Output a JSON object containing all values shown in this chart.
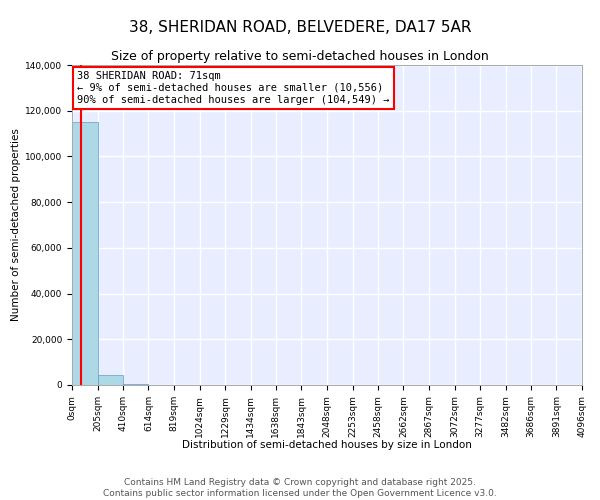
{
  "title": "38, SHERIDAN ROAD, BELVEDERE, DA17 5AR",
  "subtitle": "Size of property relative to semi-detached houses in London",
  "xlabel": "Distribution of semi-detached houses by size in London",
  "ylabel": "Number of semi-detached properties",
  "footer_line1": "Contains HM Land Registry data © Crown copyright and database right 2025.",
  "footer_line2": "Contains public sector information licensed under the Open Government Licence v3.0.",
  "annotation_title": "38 SHERIDAN ROAD: 71sqm",
  "annotation_line1": "← 9% of semi-detached houses are smaller (10,556)",
  "annotation_line2": "90% of semi-detached houses are larger (104,549) →",
  "property_size": 71,
  "bar_left_edges": [
    0,
    205,
    410,
    614,
    819,
    1024,
    1229,
    1434,
    1638,
    1843,
    2048,
    2253,
    2458,
    2662,
    2867,
    3072,
    3277,
    3482,
    3686,
    3891
  ],
  "bar_right_edges": [
    205,
    410,
    614,
    819,
    1024,
    1229,
    1434,
    1638,
    1843,
    2048,
    2253,
    2458,
    2662,
    2867,
    3072,
    3277,
    3482,
    3686,
    3891,
    4096
  ],
  "bar_heights": [
    115000,
    4500,
    500,
    200,
    100,
    80,
    60,
    50,
    40,
    30,
    25,
    20,
    18,
    15,
    12,
    10,
    8,
    7,
    6,
    5
  ],
  "bar_color": "#add8e6",
  "bar_edgecolor": "#6699cc",
  "vline_color": "red",
  "vline_x": 71,
  "xlim": [
    0,
    4096
  ],
  "ylim": [
    0,
    140000
  ],
  "yticks": [
    0,
    20000,
    40000,
    60000,
    80000,
    100000,
    120000,
    140000
  ],
  "xtick_labels": [
    "0sqm",
    "205sqm",
    "410sqm",
    "614sqm",
    "819sqm",
    "1024sqm",
    "1229sqm",
    "1434sqm",
    "1638sqm",
    "1843sqm",
    "2048sqm",
    "2253sqm",
    "2458sqm",
    "2662sqm",
    "2867sqm",
    "3072sqm",
    "3277sqm",
    "3482sqm",
    "3686sqm",
    "3891sqm",
    "4096sqm"
  ],
  "xtick_positions": [
    0,
    205,
    410,
    614,
    819,
    1024,
    1229,
    1434,
    1638,
    1843,
    2048,
    2253,
    2458,
    2662,
    2867,
    3072,
    3277,
    3482,
    3686,
    3891,
    4096
  ],
  "background_color": "#e8eeff",
  "grid_color": "white",
  "title_fontsize": 11,
  "subtitle_fontsize": 9,
  "axis_label_fontsize": 7.5,
  "tick_fontsize": 6.5,
  "footer_fontsize": 6.5,
  "annotation_fontsize": 7.5
}
